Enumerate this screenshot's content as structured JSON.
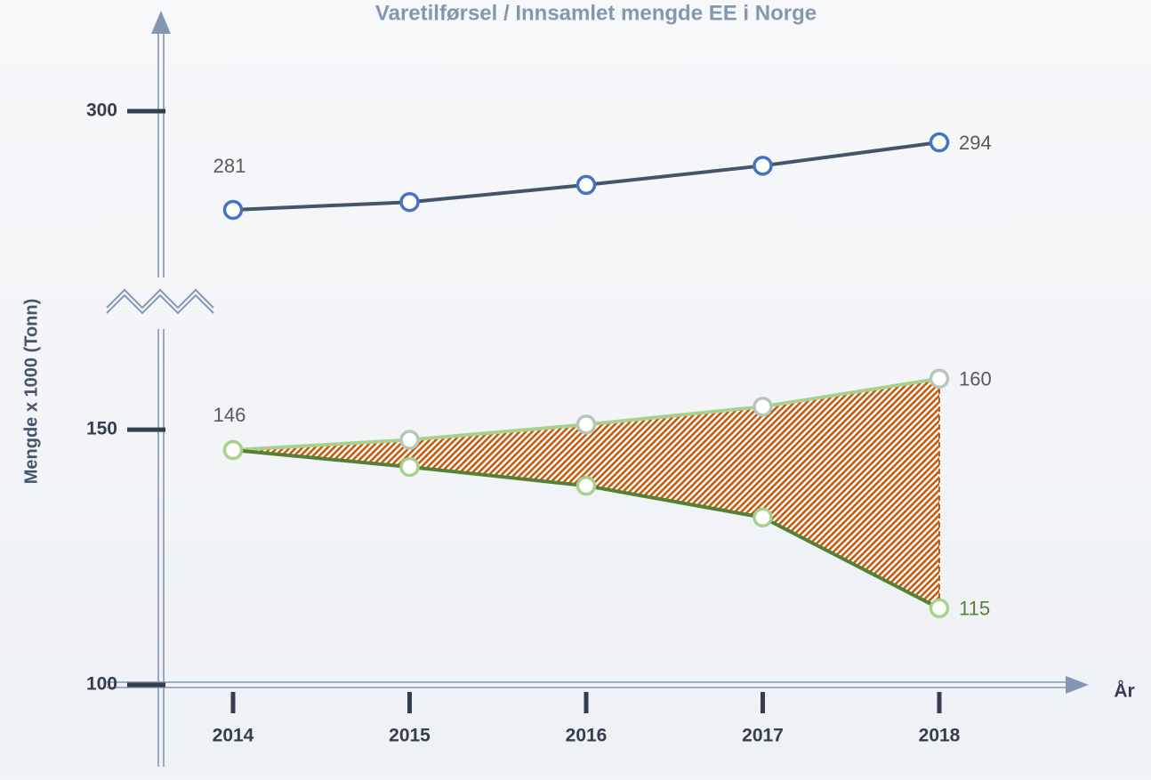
{
  "chart_data": {
    "type": "line",
    "title": "Varetilførsel  / Innsamlet mengde EE i Norge",
    "x_label": "År",
    "y_label": "Mengde x 1000 (Tonn)",
    "categories": [
      "2014",
      "2015",
      "2016",
      "2017",
      "2018"
    ],
    "series": [
      {
        "color": "#44546a",
        "marker_color": "#4472c4",
        "label_color": "#595959",
        "values": [
          281,
          282.5,
          285.8,
          289.5,
          294
        ]
      },
      {
        "color": "#a9d18e",
        "marker_color": "#b4c7b8",
        "label_color": "#595959",
        "values": [
          146,
          148,
          151,
          154.5,
          160
        ]
      },
      {
        "color": "#548235",
        "marker_color": "#a9d18e",
        "label_color": "#548235",
        "values": [
          146,
          142.7,
          139,
          132.8,
          115
        ]
      }
    ],
    "fill_between": {
      "color": "#c55a11"
    },
    "ylim": [
      100,
      300
    ],
    "axis_break": [
      165,
      275
    ],
    "yticks": [
      100,
      150,
      300
    ],
    "grid": false
  }
}
